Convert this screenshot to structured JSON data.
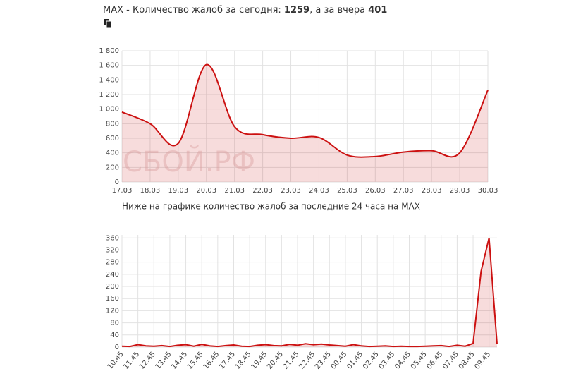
{
  "header": {
    "prefix": "MAX - Количество жалоб за сегодня:",
    "today": 1259,
    "middle": ", а за вчера",
    "yesterday": 401
  },
  "subheading": "Ниже на графике количество жалоб за последние 24 часа на MAX",
  "watermark": "СБОЙ.РФ",
  "chart_data": [
    {
      "type": "area",
      "color": "#cc1111",
      "grid": true,
      "smooth": true,
      "categories": [
        "17.03",
        "18.03",
        "19.03",
        "20.03",
        "21.03",
        "22.03",
        "23.03",
        "24.03",
        "25.03",
        "26.03",
        "27.03",
        "28.03",
        "29.03",
        "30.03"
      ],
      "values": [
        960,
        800,
        530,
        1610,
        760,
        650,
        600,
        610,
        370,
        350,
        410,
        430,
        400,
        1260
      ],
      "ylim": [
        0,
        1800
      ],
      "yticks": [
        0,
        200,
        400,
        600,
        800,
        {
          "value": 1000,
          "label": "1 000"
        },
        {
          "value": 1200,
          "label": "1 200"
        },
        {
          "value": 1400,
          "label": "1 400"
        },
        {
          "value": 1600,
          "label": "1 600"
        },
        {
          "value": 1800,
          "label": "1 800"
        }
      ]
    },
    {
      "type": "area",
      "color": "#cc1111",
      "grid": true,
      "smooth": false,
      "categories": [
        "10.45",
        null,
        "11.45",
        null,
        "12.45",
        null,
        "13.45",
        null,
        "14.45",
        null,
        "15.45",
        null,
        "16.45",
        null,
        "17.45",
        null,
        "18.45",
        null,
        "19.45",
        null,
        "20.45",
        null,
        "21.45",
        null,
        "22.45",
        null,
        "23.45",
        null,
        "00.45",
        null,
        "01.45",
        null,
        "02.45",
        null,
        "03.45",
        null,
        "04.45",
        null,
        "05.45",
        null,
        "06.45",
        null,
        "07.45",
        null,
        "08.45",
        null,
        "09.45",
        null
      ],
      "values": [
        3,
        2,
        8,
        4,
        3,
        5,
        2,
        6,
        8,
        3,
        9,
        4,
        2,
        5,
        7,
        3,
        2,
        6,
        8,
        5,
        4,
        9,
        6,
        11,
        8,
        10,
        7,
        5,
        3,
        8,
        4,
        2,
        3,
        4,
        2,
        3,
        2,
        2,
        3,
        4,
        5,
        2,
        6,
        3,
        12,
        250,
        360,
        10
      ],
      "ylim": [
        0,
        370
      ],
      "yticks": [
        0,
        40,
        80,
        120,
        160,
        200,
        240,
        280,
        320,
        360
      ]
    }
  ]
}
